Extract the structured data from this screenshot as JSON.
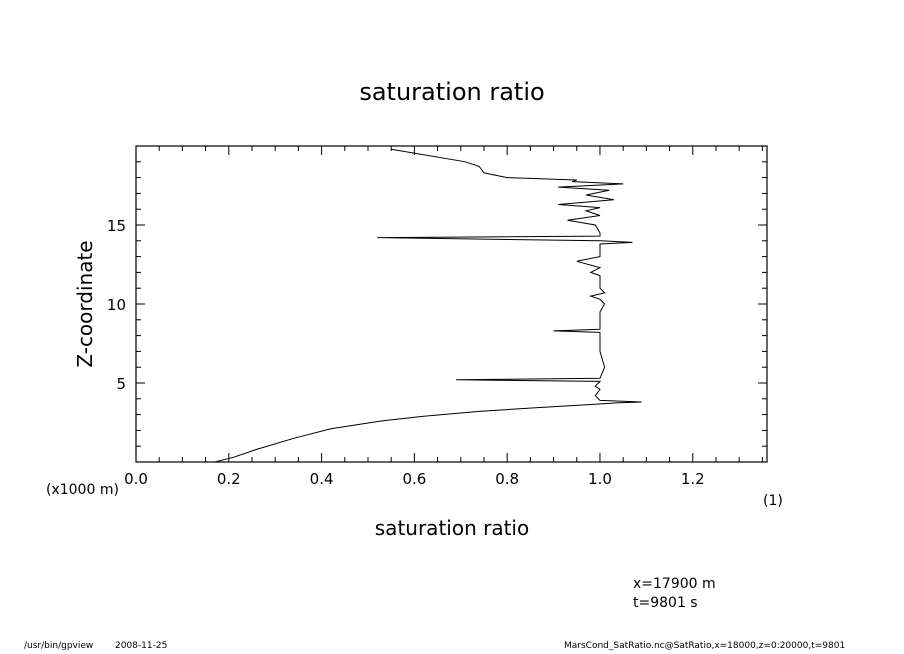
{
  "title": "saturation ratio",
  "footer": {
    "program": "/usr/bin/gpview",
    "date": "2008-11-25",
    "source": "MarsCond_SatRatio.nc@SatRatio,x=18000,z=0:20000,t=9801"
  },
  "annotation": {
    "x_info": "x=17900  m",
    "t_info": "t=9801  s"
  },
  "chart_data": {
    "type": "line",
    "title": "saturation ratio",
    "xlabel": "saturation ratio",
    "xunit": "(1)",
    "ylabel": "Z-coordinate",
    "yunit": "(x1000 m)",
    "xlim": [
      0.0,
      1.36
    ],
    "ylim": [
      0.0,
      20.0
    ],
    "xticks": [
      0.0,
      0.2,
      0.4,
      0.6,
      0.8,
      1.0,
      1.2
    ],
    "xtick_labels": [
      "0.0",
      "0.2",
      "0.4",
      "0.6",
      "0.8",
      "1.0",
      "1.2"
    ],
    "yticks": [
      5,
      10,
      15
    ],
    "ytick_labels": [
      "5",
      "10",
      "15"
    ],
    "grid": false,
    "series": [
      {
        "x": [
          0.17,
          0.21,
          0.26,
          0.34,
          0.42,
          0.53,
          0.62,
          0.74,
          0.87,
          0.99,
          1.04,
          1.09,
          1.0,
          0.99,
          1.0,
          0.99,
          1.0,
          0.69,
          1.0,
          1.01,
          1.0,
          1.0,
          1.0,
          0.9,
          1.0,
          1.0,
          1.0,
          1.01,
          1.0,
          0.98,
          1.01,
          1.0,
          1.0,
          0.98,
          1.0,
          0.95,
          1.0,
          1.0,
          1.0,
          1.07,
          1.0,
          0.52,
          1.0,
          1.0,
          0.99,
          0.93,
          1.0,
          0.97,
          1.0,
          0.91,
          1.03,
          0.97,
          1.02,
          0.91,
          1.05,
          0.94,
          0.95,
          0.8,
          0.75,
          0.74,
          0.71,
          0.55
        ],
        "y": [
          0.0,
          0.3,
          0.8,
          1.5,
          2.1,
          2.6,
          2.9,
          3.2,
          3.45,
          3.65,
          3.75,
          3.8,
          3.9,
          4.2,
          4.6,
          4.8,
          5.1,
          5.2,
          5.3,
          6.0,
          7.0,
          7.8,
          8.2,
          8.3,
          8.4,
          9.0,
          9.5,
          10.0,
          10.3,
          10.5,
          10.7,
          11.0,
          11.8,
          12.0,
          12.3,
          12.7,
          13.0,
          13.4,
          13.8,
          13.9,
          14.0,
          14.2,
          14.3,
          14.5,
          15.0,
          15.3,
          15.6,
          15.9,
          16.1,
          16.3,
          16.6,
          16.9,
          17.2,
          17.4,
          17.6,
          17.75,
          17.85,
          18.0,
          18.3,
          18.7,
          19.0,
          19.8
        ]
      }
    ]
  }
}
